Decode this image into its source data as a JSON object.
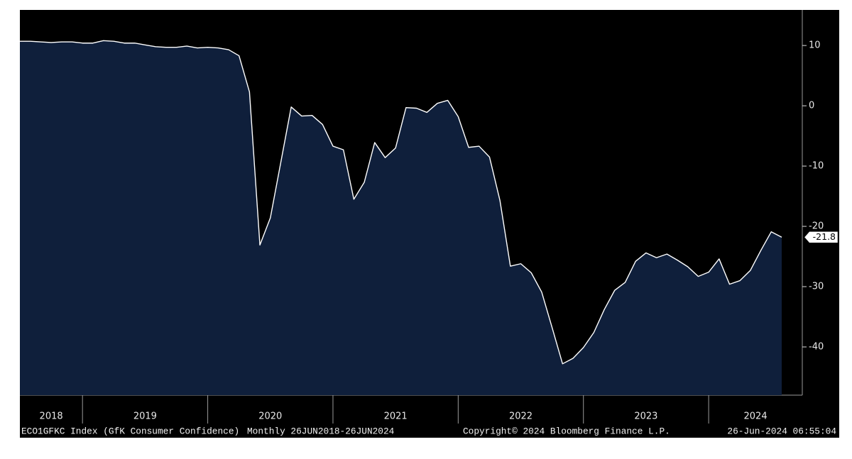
{
  "chart_data": {
    "type": "area",
    "values": [
      10.7,
      10.7,
      10.6,
      10.5,
      10.6,
      10.6,
      10.4,
      10.4,
      10.8,
      10.7,
      10.4,
      10.4,
      10.1,
      9.8,
      9.7,
      9.7,
      9.9,
      9.6,
      9.7,
      9.6,
      9.3,
      8.3,
      2.3,
      -23.1,
      -18.6,
      -9.4,
      -0.2,
      -1.7,
      -1.6,
      -3.1,
      -6.7,
      -7.3,
      -15.5,
      -12.7,
      -6.1,
      -8.6,
      -7.0,
      -0.3,
      -0.4,
      -1.1,
      0.4,
      0.9,
      -1.8,
      -6.9,
      -6.7,
      -8.5,
      -15.7,
      -26.6,
      -26.2,
      -27.7,
      -30.9,
      -36.8,
      -42.8,
      -41.9,
      -40.1,
      -37.6,
      -33.8,
      -30.6,
      -29.3,
      -25.8,
      -24.4,
      -25.2,
      -24.6,
      -25.6,
      -26.7,
      -28.3,
      -27.6,
      -25.4,
      -29.6,
      -29.0,
      -27.3,
      -24.0,
      -20.9,
      -21.8
    ],
    "year_labels": [
      "2018",
      "2019",
      "2020",
      "2021",
      "2022",
      "2023",
      "2024"
    ],
    "ylim": [
      -48,
      15.9
    ],
    "yticks": [
      -40,
      -30,
      -20,
      -10,
      0,
      10
    ],
    "fill_color": "#0f1f3b",
    "line_color": "#ffffff",
    "index_label": "ECO1GFKC Index (GfK Consumer Confidence)",
    "period_label": "Monthly 26JUN2018-26JUN2024",
    "copyright": "Copyright© 2024 Bloomberg Finance L.P.",
    "timestamp": "26-Jun-2024 06:55:04"
  }
}
